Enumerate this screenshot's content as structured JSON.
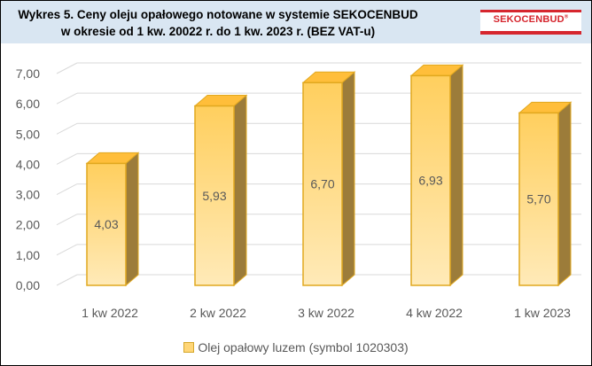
{
  "header": {
    "title_line1": "Wykres 5. Ceny oleju opałowego notowane w systemie SEKOCENBUD",
    "title_line2": "w okresie od 1 kw. 20022 r. do 1 kw. 2023 r. (BEZ VAT-u)",
    "logo_text": "SEKOCENBUD",
    "logo_registered": "®"
  },
  "colors": {
    "header_bg": "#d9e6f2",
    "bar_front_light": "#ffeab8",
    "bar_front_dark": "#ffcf5e",
    "bar_top": "#ffbe3a",
    "bar_side": "#9c7c3a",
    "bar_outline": "#e1a81f",
    "gridline": "#d9d9d9",
    "logo_red": "#d6262e"
  },
  "chart_data": {
    "type": "bar",
    "style": "3d-column",
    "categories": [
      "1 kw 2022",
      "2 kw 2022",
      "3 kw 2022",
      "4 kw 2022",
      "1 kw 2023"
    ],
    "series": [
      {
        "name": "Olej opałowy luzem (symbol 1020303)",
        "values": [
          4.03,
          5.93,
          6.7,
          6.93,
          5.7
        ],
        "labels": [
          "4,03",
          "5,93",
          "6,70",
          "6,93",
          "5,70"
        ]
      }
    ],
    "y_ticks": [
      "0,00",
      "1,00",
      "2,00",
      "3,00",
      "4,00",
      "5,00",
      "6,00",
      "7,00"
    ],
    "ylim": [
      0,
      7
    ],
    "grid": true,
    "legend_position": "bottom"
  }
}
